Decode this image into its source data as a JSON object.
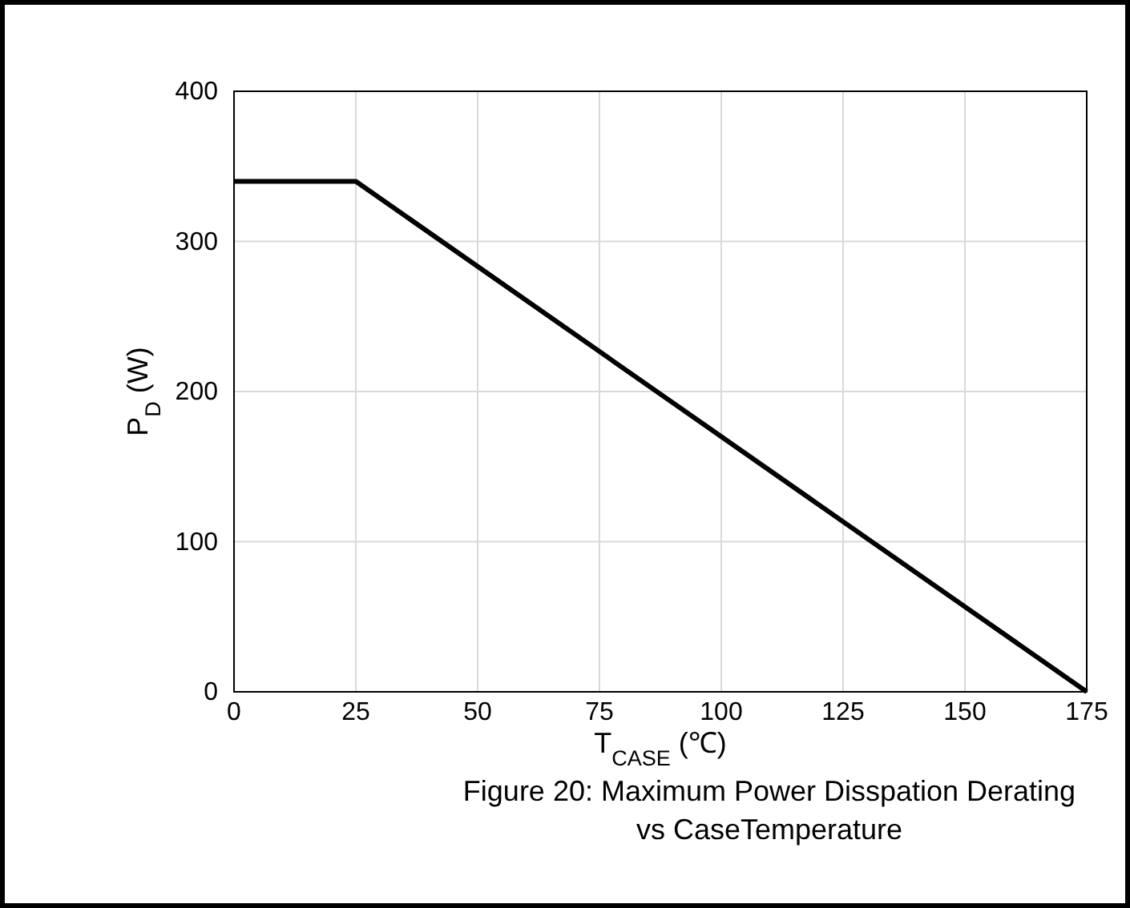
{
  "chart_data": {
    "type": "line",
    "title": "Figure 20: Maximum Power Disspation Derating\nvs CaseTemperature",
    "xlabel": "T$_{CASE}$ (℃)",
    "ylabel": "P$_{D}$ (W)",
    "x": [
      0,
      25,
      175
    ],
    "series": [
      {
        "color": "#000000",
        "values": [
          340,
          340,
          0
        ]
      }
    ],
    "xlim": [
      0,
      175
    ],
    "xticks": [
      0,
      25,
      50,
      75,
      100,
      125,
      150,
      175
    ],
    "ylim": [
      0,
      400
    ],
    "yticks": [
      0,
      100,
      200,
      300,
      400
    ],
    "grid": true,
    "marker": "none",
    "line_style": "solid"
  }
}
